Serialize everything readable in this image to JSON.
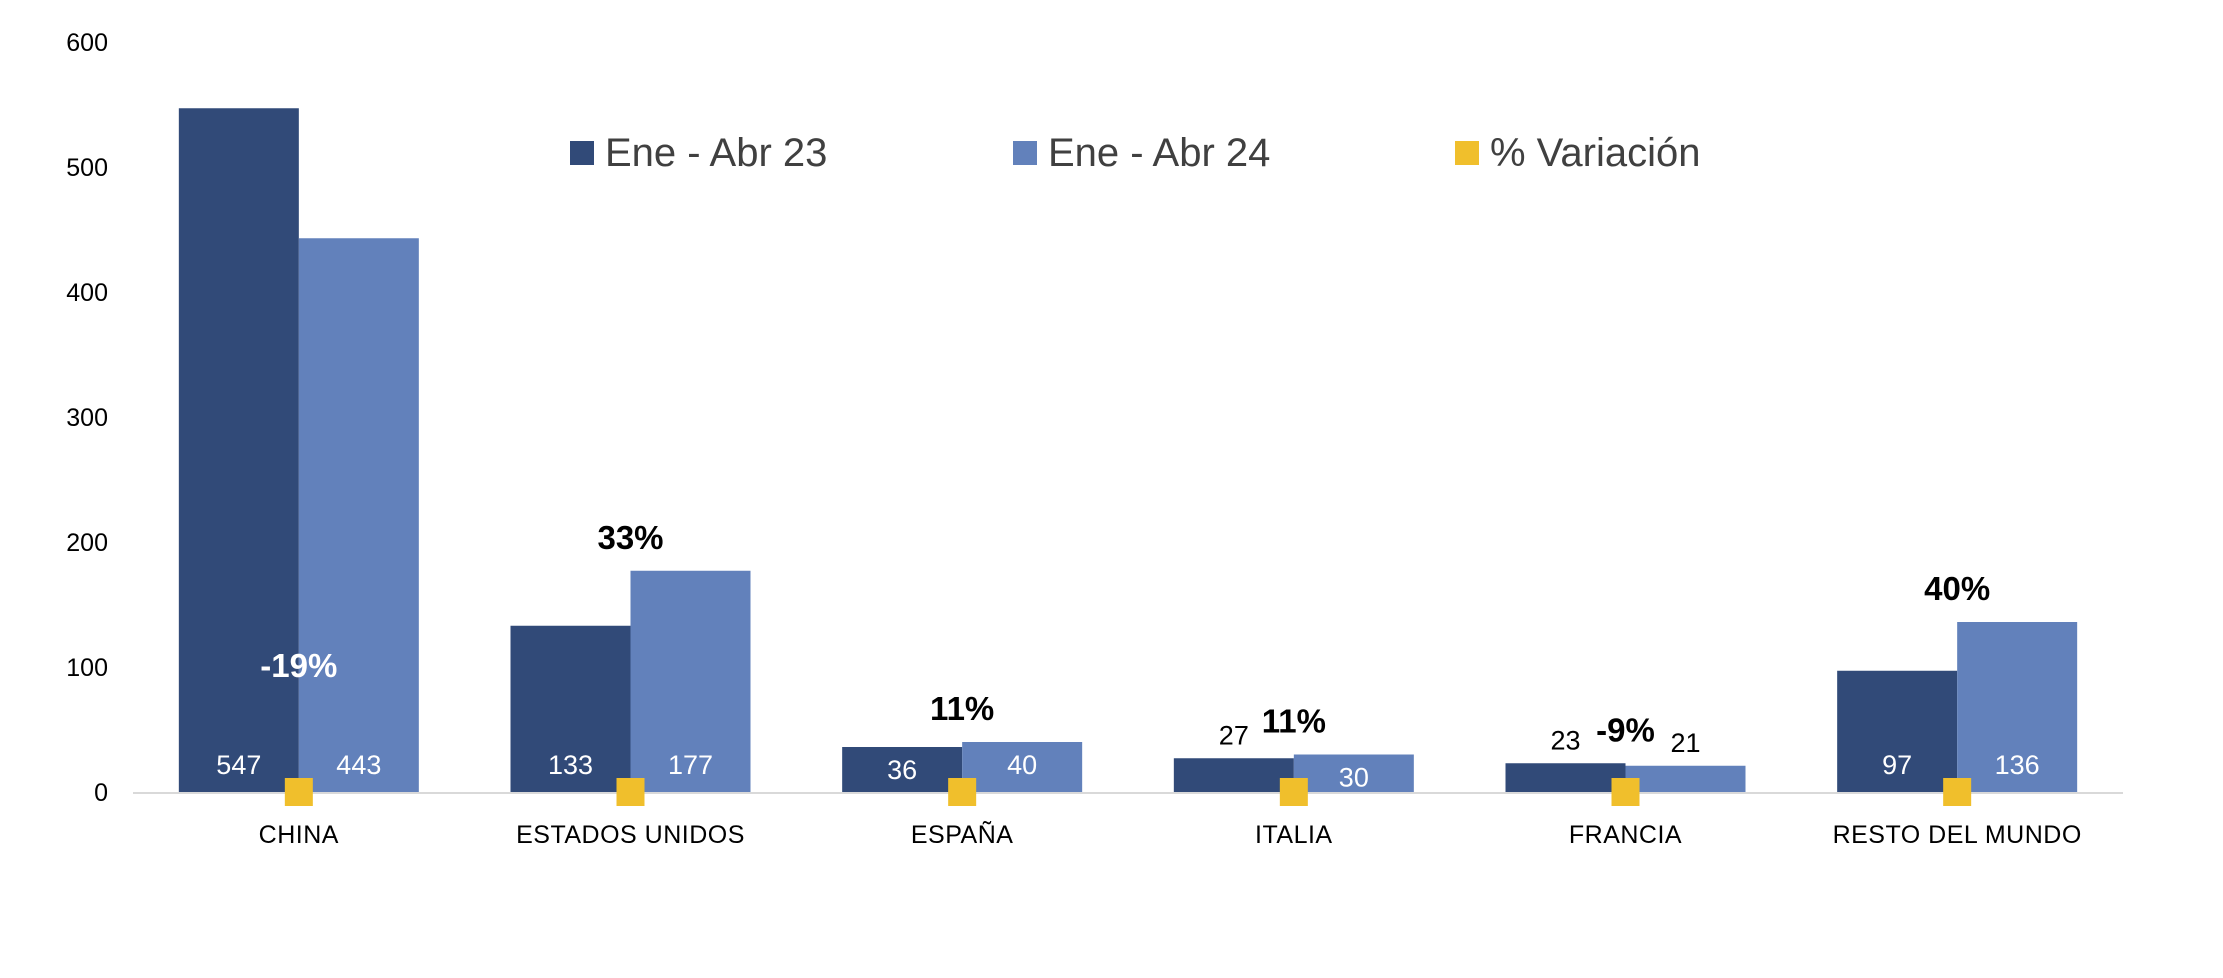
{
  "chart_data": {
    "type": "bar",
    "categories": [
      "CHINA",
      "ESTADOS UNIDOS",
      "ESPAÑA",
      "ITALIA",
      "FRANCIA",
      "RESTO DEL MUNDO"
    ],
    "series": [
      {
        "name": "Ene - Abr 23",
        "values": [
          547,
          133,
          36,
          27,
          23,
          97
        ],
        "labels": [
          "547",
          "133",
          "36",
          "27",
          "23",
          "97"
        ],
        "color": "#314a78"
      },
      {
        "name": "Ene - Abr 24",
        "values": [
          443,
          177,
          40,
          30,
          21,
          136
        ],
        "labels": [
          "443",
          "177",
          "40",
          "30",
          "21",
          "136"
        ],
        "color": "#6281bb"
      }
    ],
    "variation": {
      "name": "% Variación",
      "values": [
        -19,
        33,
        11,
        11,
        -9,
        40
      ],
      "labels": [
        "-19%",
        "33%",
        "11%",
        "11%",
        "-9%",
        "40%"
      ],
      "color": "#f0bf2c"
    },
    "y_ticks": [
      "0",
      "100",
      "200",
      "300",
      "400",
      "500",
      "600"
    ],
    "ylim": [
      0,
      600
    ],
    "legend_position": "top-center",
    "grid": false
  }
}
